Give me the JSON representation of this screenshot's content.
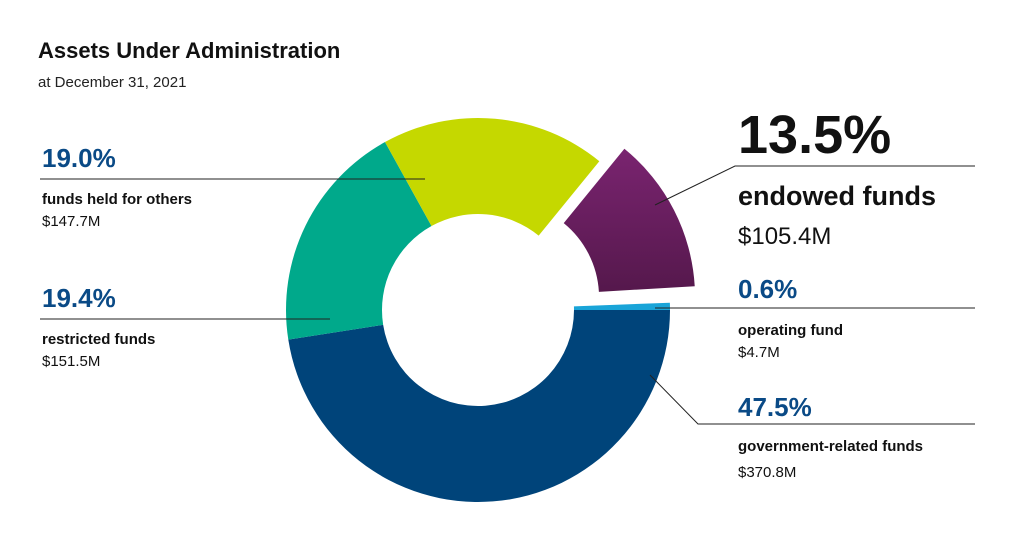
{
  "title": "Assets Under Administration",
  "subtitle": "at December 31, 2021",
  "chart_data": {
    "type": "pie",
    "title": "Assets Under Administration",
    "subtitle": "at December 31, 2021",
    "series": [
      {
        "name": "government-related funds",
        "percent_label": "47.5%",
        "amount_label": "$370.8M",
        "value": 370.8,
        "percent": 47.5,
        "color": "#00447a"
      },
      {
        "name": "restricted funds",
        "percent_label": "19.4%",
        "amount_label": "$151.5M",
        "value": 151.5,
        "percent": 19.4,
        "color": "#00a98b"
      },
      {
        "name": "funds held for others",
        "percent_label": "19.0%",
        "amount_label": "$147.7M",
        "value": 147.7,
        "percent": 19.0,
        "color": "#c5d800"
      },
      {
        "name": "endowed funds",
        "percent_label": "13.5%",
        "amount_label": "$105.4M",
        "value": 105.4,
        "percent": 13.5,
        "color": "#6a1f5e",
        "exploded": true
      },
      {
        "name": "operating fund",
        "percent_label": "0.6%",
        "amount_label": "$4.7M",
        "value": 4.7,
        "percent": 0.6,
        "color": "#19a4d8"
      }
    ]
  }
}
